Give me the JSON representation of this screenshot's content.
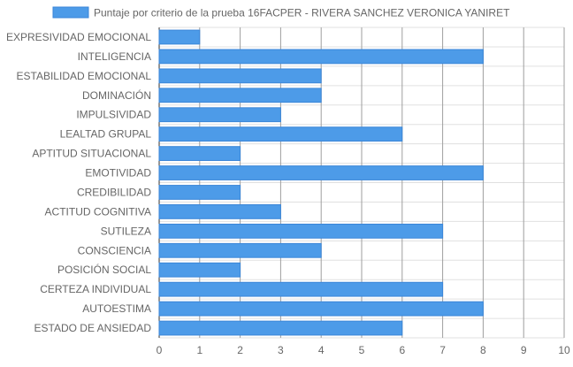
{
  "chart_data": {
    "type": "bar",
    "orientation": "horizontal",
    "categories": [
      "EXPRESIVIDAD EMOCIONAL",
      "INTELIGENCIA",
      "ESTABILIDAD EMOCIONAL",
      "DOMINACIÓN",
      "IMPULSIVIDAD",
      "LEALTAD GRUPAL",
      "APTITUD SITUACIONAL",
      "EMOTIVIDAD",
      "CREDIBILIDAD",
      "ACTITUD COGNITIVA",
      "SUTILEZA",
      "CONSCIENCIA",
      "POSICIÓN SOCIAL",
      "CERTEZA INDIVIDUAL",
      "AUTOESTIMA",
      "ESTADO DE ANSIEDAD"
    ],
    "series": [
      {
        "name": "Puntaje por criterio de la prueba 16FACPER - RIVERA SANCHEZ VERONICA YANIRET",
        "values": [
          1,
          8,
          4,
          4,
          3,
          6,
          2,
          8,
          2,
          3,
          7,
          4,
          2,
          7,
          8,
          6
        ]
      }
    ],
    "xlim": [
      0,
      10
    ],
    "x_ticks": [
      "0",
      "1",
      "2",
      "3",
      "4",
      "5",
      "6",
      "7",
      "8",
      "9",
      "10"
    ],
    "grid": true,
    "legend_position": "top",
    "colors": {
      "bar_fill": "#4d9be8",
      "bar_stroke": "#3a86d8",
      "grid": "#e0e0e0",
      "grid_vertical": "#9e9e9e",
      "label": "#666666"
    }
  }
}
